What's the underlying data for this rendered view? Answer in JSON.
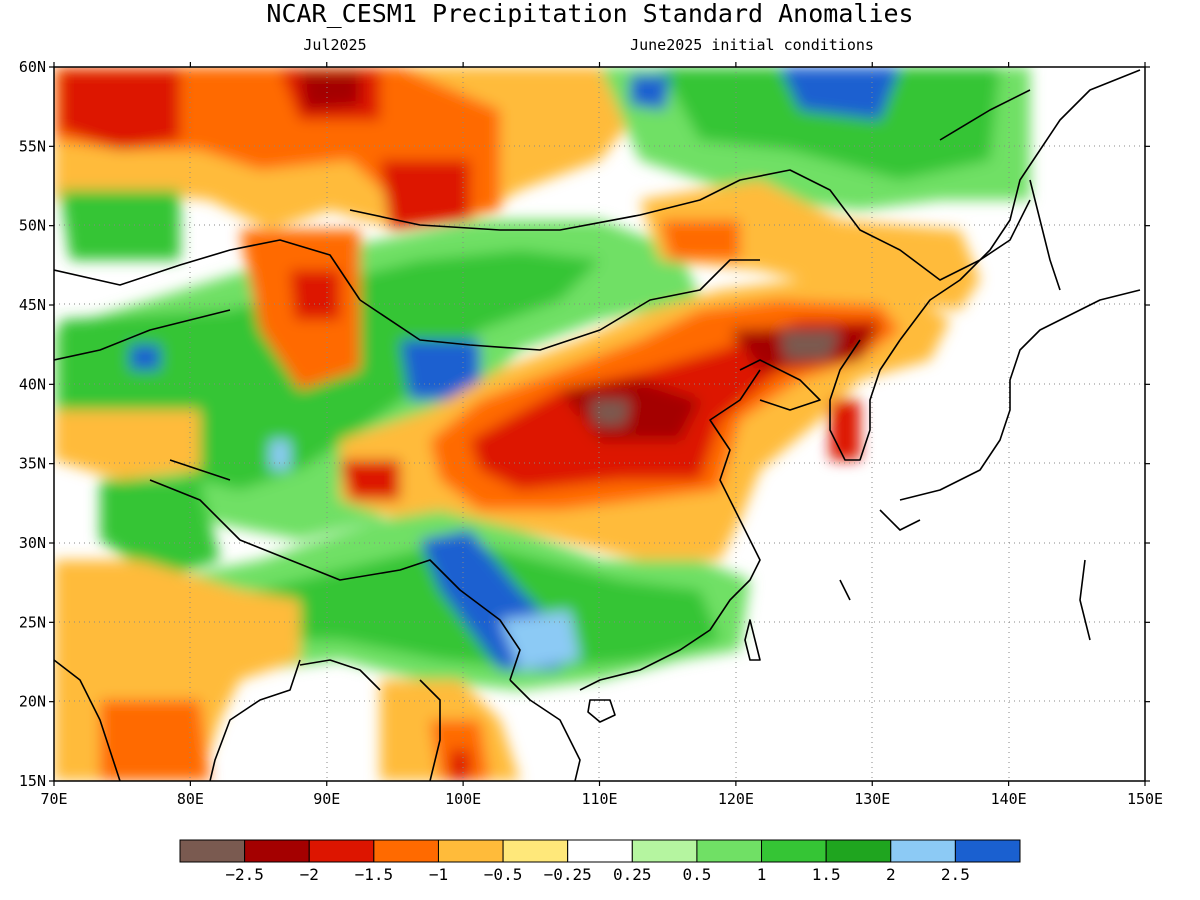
{
  "title": "NCAR_CESM1 Precipitation Standard Anomalies",
  "subtitle_left": "Jul2025",
  "subtitle_right": "June2025 initial conditions",
  "lat_ticks": [
    "60N",
    "55N",
    "50N",
    "45N",
    "40N",
    "35N",
    "30N",
    "25N",
    "20N",
    "15N"
  ],
  "lon_ticks": [
    "70E",
    "80E",
    "90E",
    "100E",
    "110E",
    "120E",
    "130E",
    "140E",
    "150E"
  ],
  "colorbar": {
    "colors": [
      "#7a5a50",
      "#a40000",
      "#dd1500",
      "#ff6a00",
      "#ffbb3a",
      "#ffe87a",
      "#ffffff",
      "#b5f5a0",
      "#70e065",
      "#35c535",
      "#1fa51f",
      "#8ccaf5",
      "#1a60d0"
    ],
    "labels": [
      "-2.5",
      "-2",
      "-1.5",
      "-1",
      "-0.5",
      "-0.25",
      "0.25",
      "0.5",
      "1",
      "1.5",
      "2",
      "2.5"
    ]
  },
  "map_extent": {
    "lon": [
      70,
      150
    ],
    "lat": [
      15,
      60
    ]
  }
}
